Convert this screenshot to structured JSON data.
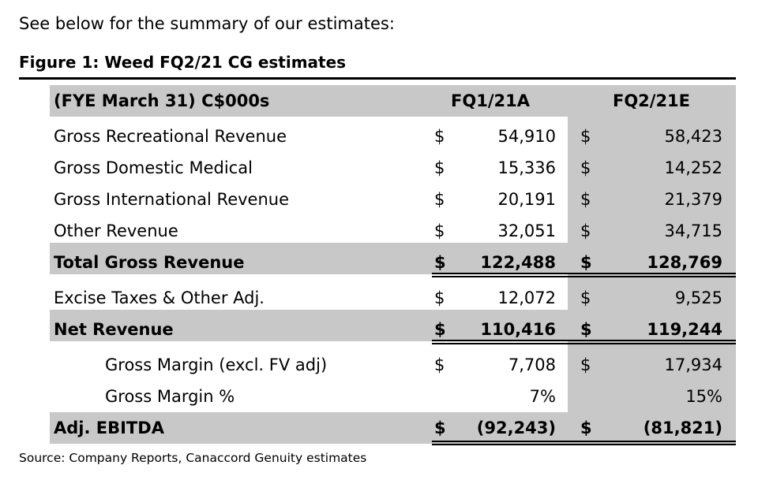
{
  "intro": "See below for the summary of our estimates:",
  "figure_title": "Figure 1: Weed FQ2/21 CG estimates",
  "table": {
    "header": {
      "label": "(FYE March 31) C$000s",
      "col1": "FQ1/21A",
      "col2": "FQ2/21E"
    },
    "rows": [
      {
        "label": "Gross Recreational Revenue",
        "cur1": "$",
        "v1": "54,910",
        "cur2": "$",
        "v2": "58,423"
      },
      {
        "label": "Gross Domestic Medical",
        "cur1": "$",
        "v1": "15,336",
        "cur2": "$",
        "v2": "14,252"
      },
      {
        "label": "Gross International Revenue",
        "cur1": "$",
        "v1": "20,191",
        "cur2": "$",
        "v2": "21,379"
      },
      {
        "label": "Other Revenue",
        "cur1": "$",
        "v1": "32,051",
        "cur2": "$",
        "v2": "34,715"
      },
      {
        "label": "Total Gross Revenue",
        "cur1": "$",
        "v1": "122,488",
        "cur2": "$",
        "v2": "128,769"
      },
      {
        "label": "Excise Taxes & Other Adj.",
        "cur1": "$",
        "v1": "12,072",
        "cur2": "$",
        "v2": "9,525"
      },
      {
        "label": "Net Revenue",
        "cur1": "$",
        "v1": "110,416",
        "cur2": "$",
        "v2": "119,244"
      },
      {
        "label": "Gross Margin (excl. FV adj)",
        "cur1": "$",
        "v1": "7,708",
        "cur2": "$",
        "v2": "17,934"
      },
      {
        "label": "Gross Margin %",
        "cur1": "",
        "v1": "7%",
        "cur2": "",
        "v2": "15%"
      },
      {
        "label": "Adj. EBITDA",
        "cur1": "$",
        "v1": "(92,243)",
        "cur2": "$",
        "v2": "(81,821)"
      }
    ]
  },
  "source": "Source: Company Reports, Canaccord Genuity estimates"
}
